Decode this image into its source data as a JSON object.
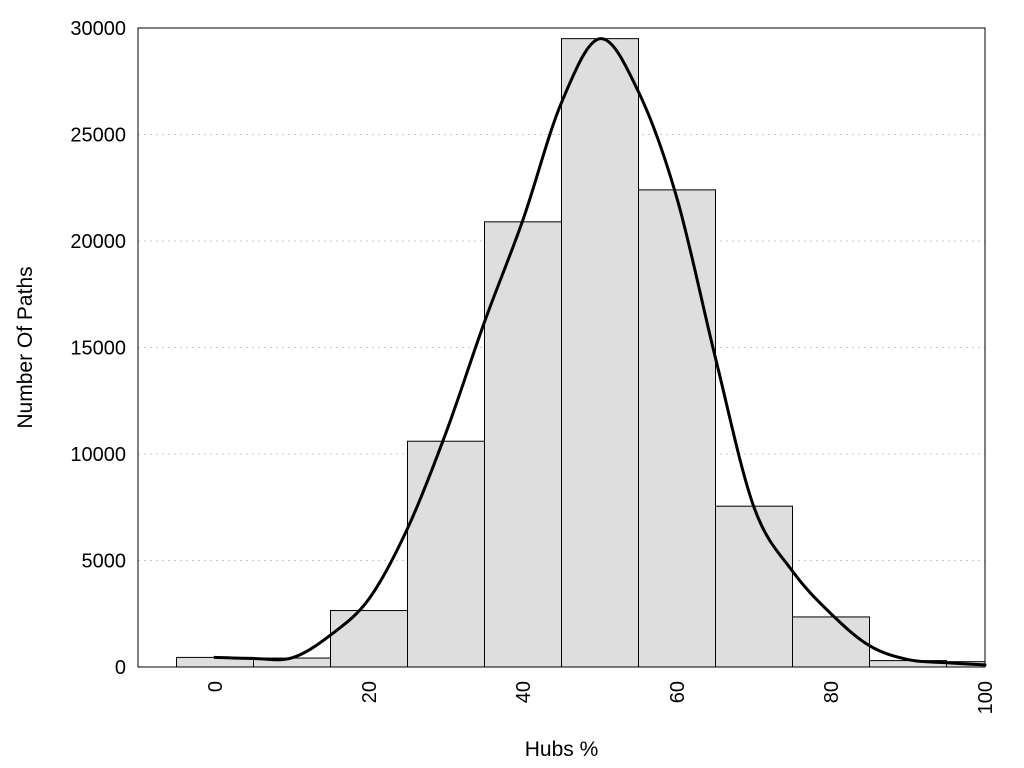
{
  "chart_data": {
    "type": "bar",
    "xlabel": "Hubs %",
    "ylabel": "Number Of Paths",
    "xlim": [
      -10,
      100
    ],
    "ylim": [
      0,
      30000
    ],
    "x_ticks": [
      0,
      20,
      40,
      60,
      80,
      100
    ],
    "y_ticks": [
      0,
      5000,
      10000,
      15000,
      20000,
      25000,
      30000
    ],
    "grid": "horizontal-dotted",
    "bar_color": "#dedede",
    "line_color": "#000000",
    "bins": [
      {
        "start": -5,
        "end": 5,
        "value": 450
      },
      {
        "start": 5,
        "end": 15,
        "value": 420
      },
      {
        "start": 15,
        "end": 25,
        "value": 2650
      },
      {
        "start": 25,
        "end": 35,
        "value": 10600
      },
      {
        "start": 35,
        "end": 45,
        "value": 20900
      },
      {
        "start": 45,
        "end": 55,
        "value": 29500
      },
      {
        "start": 55,
        "end": 65,
        "value": 22400
      },
      {
        "start": 65,
        "end": 75,
        "value": 7550
      },
      {
        "start": 75,
        "end": 85,
        "value": 2350
      },
      {
        "start": 85,
        "end": 95,
        "value": 300
      },
      {
        "start": 95,
        "end": 100,
        "value": 250
      }
    ],
    "density_curve": {
      "x": [
        0,
        5,
        10,
        15,
        20,
        25,
        30,
        35,
        40,
        45,
        50,
        55,
        60,
        65,
        70,
        75,
        80,
        85,
        90,
        95,
        100
      ],
      "y": [
        450,
        400,
        430,
        1500,
        3200,
        6500,
        11000,
        16200,
        21000,
        26500,
        29500,
        27000,
        22000,
        14500,
        7500,
        4500,
        2500,
        1000,
        350,
        200,
        100
      ]
    }
  }
}
